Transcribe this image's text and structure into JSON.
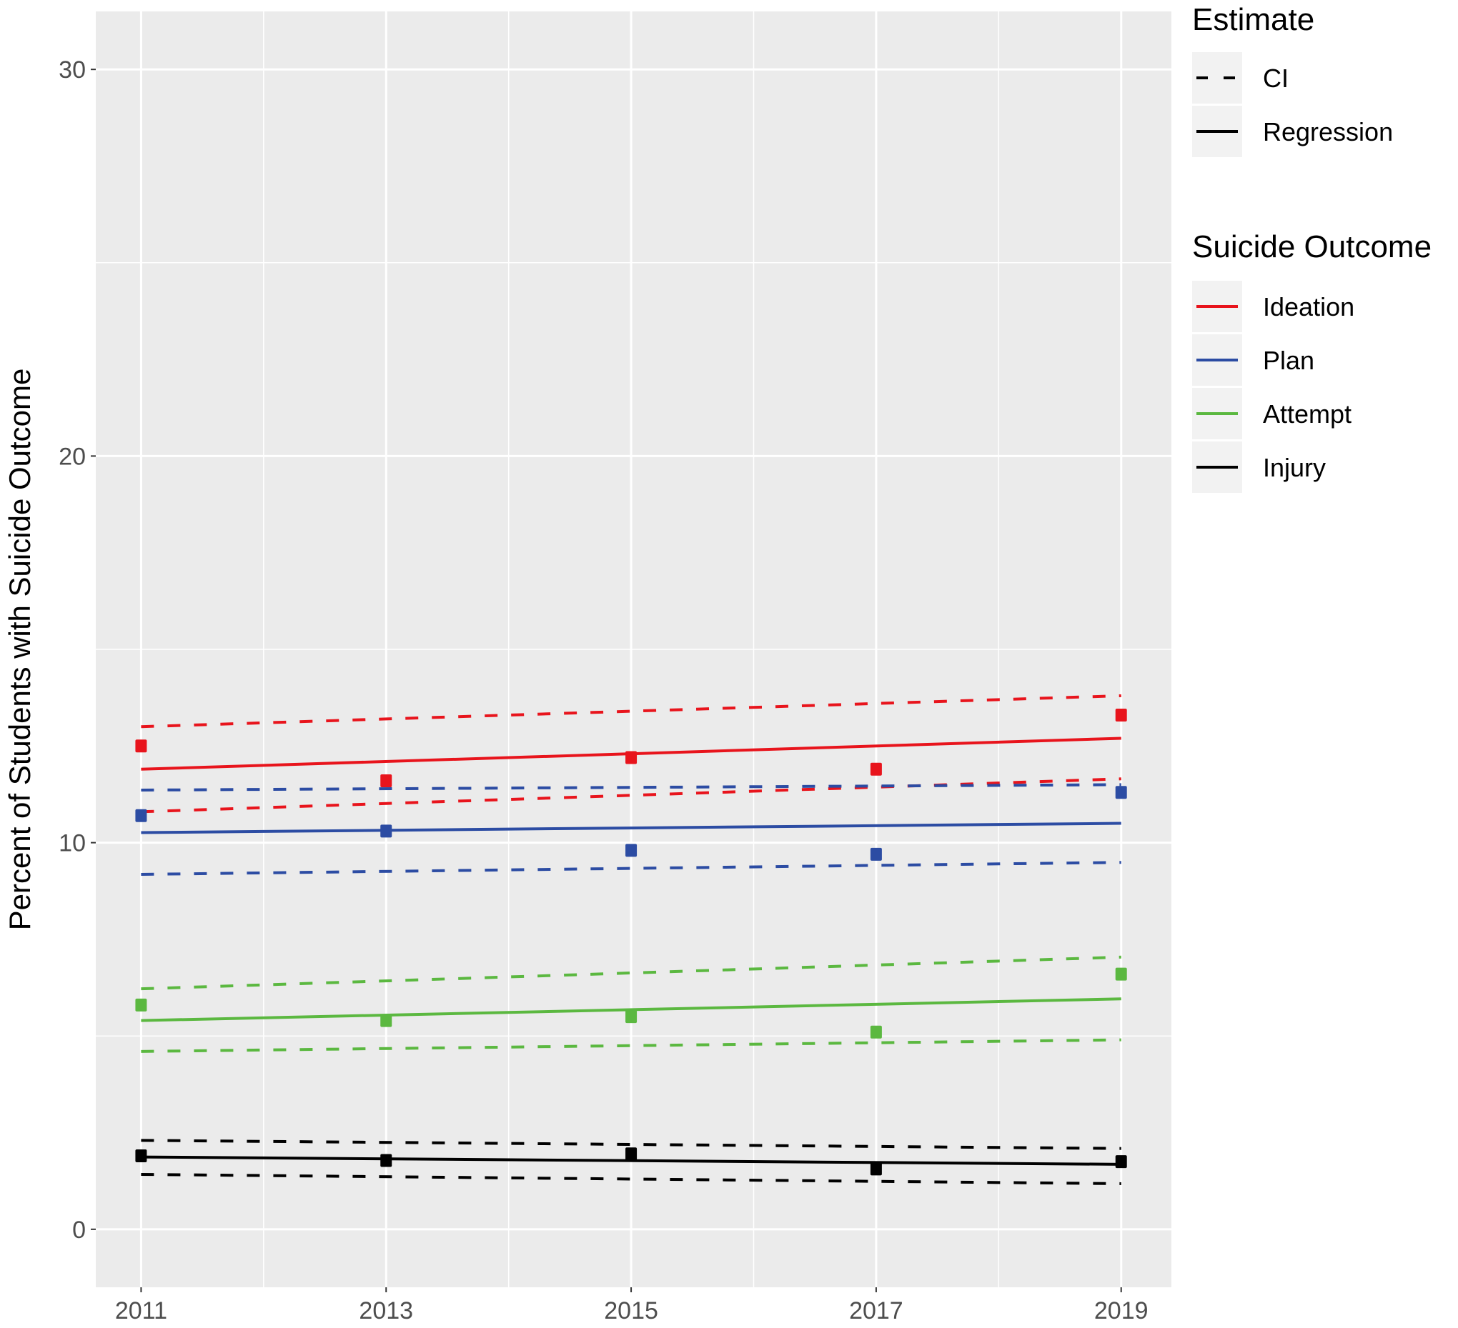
{
  "chart_data": {
    "type": "line",
    "title": "",
    "xlabel": "",
    "ylabel": "Percent of Students with Suicide Outcome",
    "xlim": [
      2010.63,
      2019.41
    ],
    "ylim": [
      -1.5,
      31.5
    ],
    "x_ticks": [
      2011,
      2013,
      2015,
      2017,
      2019
    ],
    "x_minor_ticks": [
      2012,
      2014,
      2016,
      2018
    ],
    "y_ticks": [
      0,
      10,
      20,
      30
    ],
    "y_minor_ticks": [
      5,
      15,
      25
    ],
    "grid": true,
    "legend_placement": "right",
    "legends": {
      "estimate": {
        "title": "Estimate",
        "entries": [
          {
            "label": "CI",
            "style": "dashed"
          },
          {
            "label": "Regression",
            "style": "solid"
          }
        ]
      },
      "outcome": {
        "title": "Suicide Outcome",
        "entries": [
          "Ideation",
          "Plan",
          "Attempt",
          "Injury"
        ]
      }
    },
    "x": [
      2011,
      2013,
      2015,
      2017,
      2019
    ],
    "series": [
      {
        "name": "Ideation",
        "color": "#e8141c",
        "points": [
          12.5,
          11.6,
          12.2,
          11.9,
          13.3
        ],
        "regression": [
          11.9,
          12.7
        ],
        "ci_upper": [
          13.0,
          13.8
        ],
        "ci_lower": [
          10.8,
          11.65
        ]
      },
      {
        "name": "Plan",
        "color": "#2c4ca3",
        "points": [
          10.7,
          10.3,
          9.8,
          9.7,
          11.3
        ],
        "regression": [
          10.26,
          10.5
        ],
        "ci_upper": [
          11.36,
          11.5
        ],
        "ci_lower": [
          9.18,
          9.49
        ]
      },
      {
        "name": "Attempt",
        "color": "#5bb840",
        "points": [
          5.8,
          5.4,
          5.5,
          5.1,
          6.6
        ],
        "regression": [
          5.4,
          5.96
        ],
        "ci_upper": [
          6.22,
          7.04
        ],
        "ci_lower": [
          4.6,
          4.9
        ]
      },
      {
        "name": "Injury",
        "color": "#000000",
        "points": [
          1.9,
          1.78,
          1.95,
          1.56,
          1.75
        ],
        "regression": [
          1.87,
          1.68
        ],
        "ci_upper": [
          2.3,
          2.09
        ],
        "ci_lower": [
          1.42,
          1.18
        ]
      }
    ]
  }
}
